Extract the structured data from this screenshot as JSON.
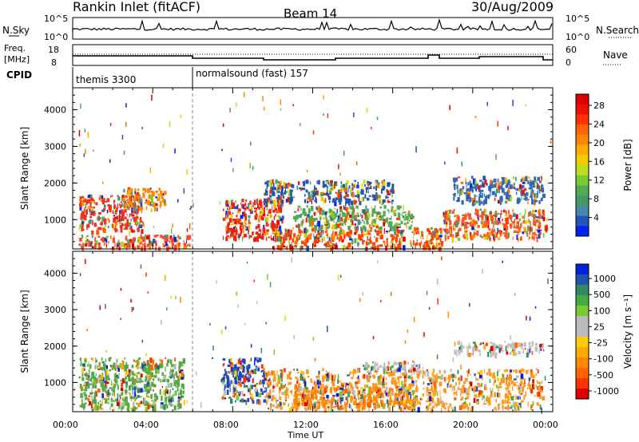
{
  "header": {
    "station": "Rankin Inlet (fitACF)",
    "beam": "Beam 14",
    "date": "30/Aug/2009"
  },
  "sky_panel": {
    "left_label": "N.Sky",
    "right_label": "N.Search",
    "left_ticks": [
      "10^5",
      "10^0"
    ],
    "right_ticks": [
      "10^5",
      "10^0"
    ]
  },
  "freq_panel": {
    "left_label_1": "Freq.",
    "left_label_2": "[MHz]",
    "right_label": "Nave",
    "left_ticks": [
      "18",
      "8"
    ],
    "right_ticks": [
      "60",
      "0"
    ]
  },
  "cpid_panel": {
    "label": "CPID",
    "modes": [
      {
        "name": "themis 3300",
        "start_hour": 0
      },
      {
        "name": "normalsound (fast) 157",
        "start_hour": 6
      }
    ]
  },
  "chart_data": [
    {
      "type": "heatmap",
      "id": "power",
      "ylabel": "Slant Range [km]",
      "ylim": [
        200,
        4600
      ],
      "xlim": [
        0,
        24
      ],
      "yticks": [
        1000,
        2000,
        3000,
        4000
      ],
      "colorbar": {
        "label": "Power [dB]",
        "ticks": [
          "4",
          "8",
          "12",
          "16",
          "20",
          "24",
          "28"
        ],
        "colors": [
          "#0022ee",
          "#2255bb",
          "#4488aa",
          "#449966",
          "#55aa55",
          "#77cc33",
          "#bbdd22",
          "#eecc00",
          "#ffaa00",
          "#ff8800",
          "#ff6600",
          "#ff3300",
          "#ee1100",
          "#dd0000"
        ]
      },
      "regions": [
        {
          "t0": 0.3,
          "t1": 3.5,
          "r0": 700,
          "r1": 1700,
          "dominant": "#ee3322"
        },
        {
          "t0": 0.2,
          "t1": 5.8,
          "r0": 250,
          "r1": 600,
          "dominant": "#ff4422"
        },
        {
          "t0": 2.5,
          "t1": 4.6,
          "r0": 1300,
          "r1": 1900,
          "dominant": "#ff8800"
        },
        {
          "t0": 7.5,
          "t1": 10.5,
          "r0": 500,
          "r1": 1600,
          "dominant": "#ee2211"
        },
        {
          "t0": 10,
          "t1": 18.5,
          "r0": 250,
          "r1": 800,
          "dominant": "#ff4400"
        },
        {
          "t0": 11,
          "t1": 17,
          "r0": 800,
          "r1": 1400,
          "dominant": "#55aa55"
        },
        {
          "t0": 18.5,
          "t1": 23.7,
          "r0": 500,
          "r1": 1300,
          "dominant": "#ff5522"
        },
        {
          "t0": 19,
          "t1": 23.5,
          "r0": 1500,
          "r1": 2200,
          "dominant": "#3366bb"
        },
        {
          "t0": 9.5,
          "t1": 16,
          "r0": 1500,
          "r1": 2100,
          "dominant": "#2255aa"
        }
      ]
    },
    {
      "type": "heatmap",
      "id": "velocity",
      "ylabel": "Slant Range [km]",
      "ylim": [
        200,
        4600
      ],
      "xlim": [
        0,
        24
      ],
      "yticks": [
        1000,
        2000,
        3000,
        4000
      ],
      "colorbar": {
        "label": "Velocity [m s⁻¹]",
        "ticks": [
          "1000",
          "500",
          "100",
          "25",
          "-25",
          "-100",
          "-500",
          "-1000"
        ],
        "colors": [
          "#0022dd",
          "#2255aa",
          "#338866",
          "#44aa44",
          "#77cc33",
          "#bbbbbb",
          "#bbbbbb",
          "#ffcc00",
          "#ffaa00",
          "#ff8800",
          "#ff6600",
          "#ff3300",
          "#dd0000"
        ]
      },
      "regions": [
        {
          "t0": 0.3,
          "t1": 5.5,
          "r0": 300,
          "r1": 1700,
          "dominant": "#55aa44"
        },
        {
          "t0": 7.4,
          "t1": 9.6,
          "r0": 500,
          "r1": 1700,
          "dominant": "#2244bb"
        },
        {
          "t0": 9.6,
          "t1": 23.5,
          "r0": 300,
          "r1": 1400,
          "dominant": "#ff9922"
        },
        {
          "t0": 11,
          "t1": 17,
          "r0": 350,
          "r1": 900,
          "dominant": "#ff8800"
        },
        {
          "t0": 19,
          "t1": 23.5,
          "r0": 1800,
          "r1": 2150,
          "dominant": "#c0c0c0"
        },
        {
          "t0": 14.5,
          "t1": 17.5,
          "r0": 1300,
          "r1": 1600,
          "dominant": "#c0c0c0"
        }
      ]
    }
  ],
  "x_axis": {
    "label": "Time UT",
    "ticks": [
      "00:00",
      "04:00",
      "08:00",
      "12:00",
      "16:00",
      "20:00",
      "00:00"
    ]
  }
}
